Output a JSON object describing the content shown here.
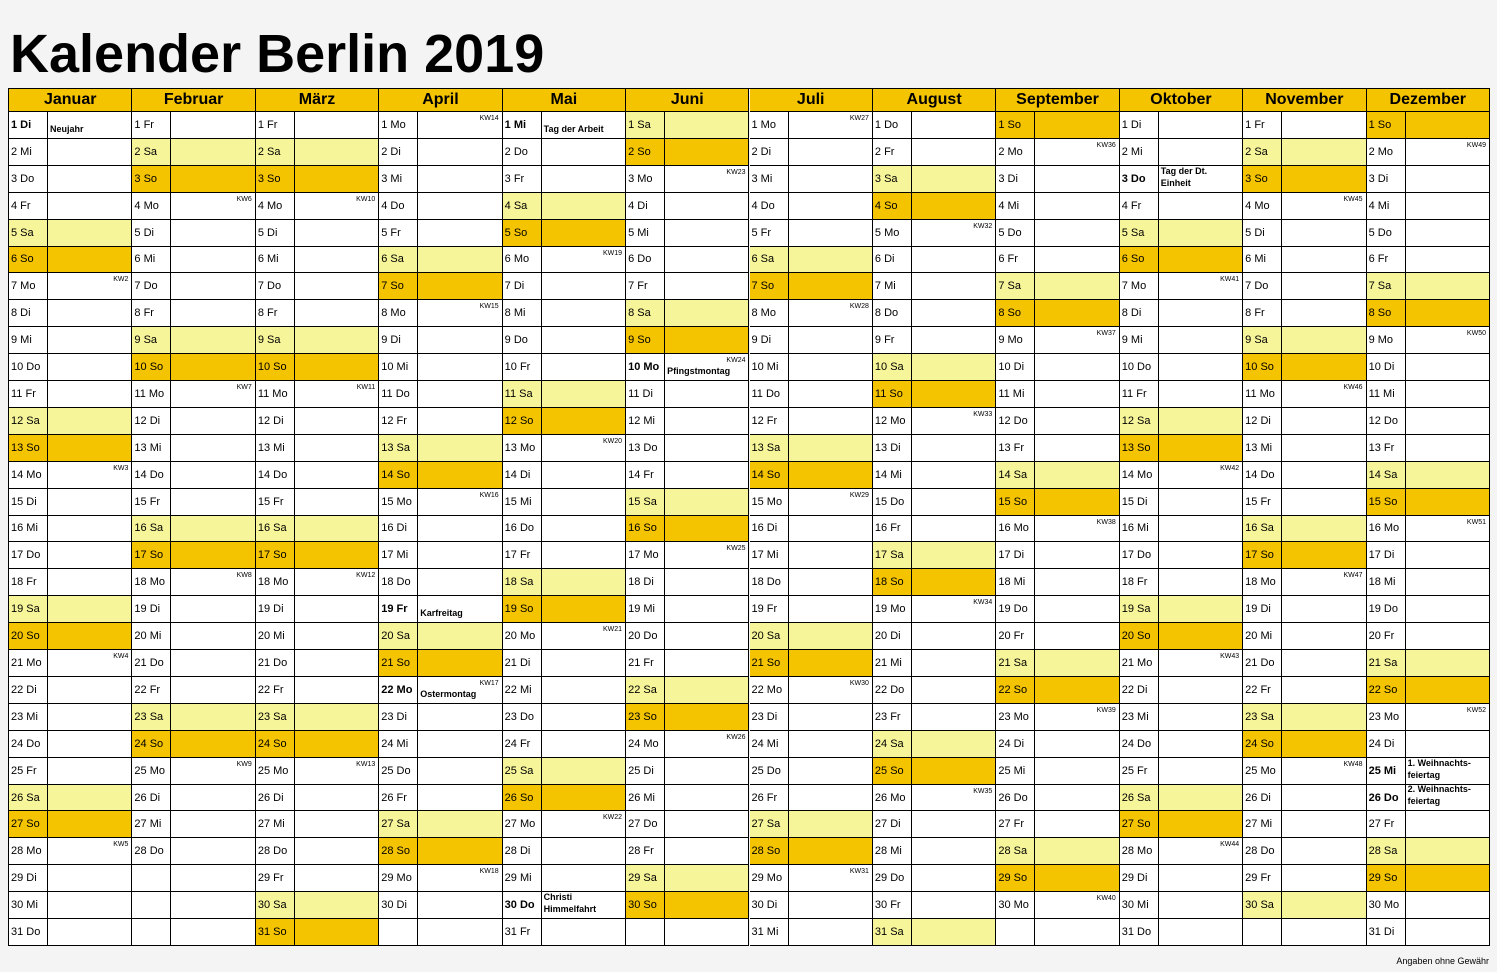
{
  "title": "Kalender Berlin 2019",
  "footer": "Angaben ohne Gewähr",
  "months": [
    {
      "name": "Januar",
      "days": [
        {
          "label": "1 Di",
          "note": "Neujahr"
        },
        "2 Mi",
        "3 Do",
        "4 Fr",
        "5 Sa",
        "6 So",
        {
          "label": "7 Mo",
          "kw": "KW2"
        },
        "8 Di",
        "9 Mi",
        "10 Do",
        "11 Fr",
        "12 Sa",
        "13 So",
        {
          "label": "14 Mo",
          "kw": "KW3"
        },
        "15 Di",
        "16 Mi",
        "17 Do",
        "18 Fr",
        "19 Sa",
        "20 So",
        {
          "label": "21 Mo",
          "kw": "KW4"
        },
        "22 Di",
        "23 Mi",
        "24 Do",
        "25 Fr",
        "26 Sa",
        "27 So",
        {
          "label": "28 Mo",
          "kw": "KW5"
        },
        "29 Di",
        "30 Mi",
        "31 Do"
      ]
    },
    {
      "name": "Februar",
      "days": [
        "1 Fr",
        "2 Sa",
        "3 So",
        {
          "label": "4 Mo",
          "kw": "KW6"
        },
        "5 Di",
        "6 Mi",
        "7 Do",
        "8 Fr",
        "9 Sa",
        "10 So",
        {
          "label": "11 Mo",
          "kw": "KW7"
        },
        "12 Di",
        "13 Mi",
        "14 Do",
        "15 Fr",
        "16 Sa",
        "17 So",
        {
          "label": "18 Mo",
          "kw": "KW8"
        },
        "19 Di",
        "20 Mi",
        "21 Do",
        "22 Fr",
        "23 Sa",
        "24 So",
        {
          "label": "25 Mo",
          "kw": "KW9"
        },
        "26 Di",
        "27 Mi",
        "28 Do"
      ]
    },
    {
      "name": "März",
      "days": [
        "1 Fr",
        "2 Sa",
        "3 So",
        {
          "label": "4 Mo",
          "kw": "KW10"
        },
        "5 Di",
        "6 Mi",
        "7 Do",
        "8 Fr",
        "9 Sa",
        "10 So",
        {
          "label": "11 Mo",
          "kw": "KW11"
        },
        "12 Di",
        "13 Mi",
        "14 Do",
        "15 Fr",
        "16 Sa",
        "17 So",
        {
          "label": "18 Mo",
          "kw": "KW12"
        },
        "19 Di",
        "20 Mi",
        "21 Do",
        "22 Fr",
        "23 Sa",
        "24 So",
        {
          "label": "25 Mo",
          "kw": "KW13"
        },
        "26 Di",
        "27 Mi",
        "28 Do",
        "29 Fr",
        "30 Sa",
        "31 So"
      ]
    },
    {
      "name": "April",
      "days": [
        {
          "label": "1 Mo",
          "kw": "KW14"
        },
        "2 Di",
        "3 Mi",
        "4 Do",
        "5 Fr",
        "6 Sa",
        "7 So",
        {
          "label": "8 Mo",
          "kw": "KW15"
        },
        "9 Di",
        "10 Mi",
        "11 Do",
        "12 Fr",
        "13 Sa",
        "14 So",
        {
          "label": "15 Mo",
          "kw": "KW16"
        },
        "16 Di",
        "17 Mi",
        "18 Do",
        {
          "label": "19 Fr",
          "note": "Karfreitag"
        },
        "20 Sa",
        "21 So",
        {
          "label": "22 Mo",
          "kw": "KW17",
          "note": "Ostermontag"
        },
        "23 Di",
        "24 Mi",
        "25 Do",
        "26 Fr",
        "27 Sa",
        "28 So",
        {
          "label": "29 Mo",
          "kw": "KW18"
        },
        "30 Di"
      ]
    },
    {
      "name": "Mai",
      "days": [
        {
          "label": "1 Mi",
          "note": "Tag der Arbeit"
        },
        "2 Do",
        "3 Fr",
        "4 Sa",
        "5 So",
        {
          "label": "6 Mo",
          "kw": "KW19"
        },
        "7 Di",
        "8 Mi",
        "9 Do",
        "10 Fr",
        "11 Sa",
        "12 So",
        {
          "label": "13 Mo",
          "kw": "KW20"
        },
        "14 Di",
        "15 Mi",
        "16 Do",
        "17 Fr",
        "18 Sa",
        "19 So",
        {
          "label": "20 Mo",
          "kw": "KW21"
        },
        "21 Di",
        "22 Mi",
        "23 Do",
        "24 Fr",
        "25 Sa",
        "26 So",
        {
          "label": "27 Mo",
          "kw": "KW22"
        },
        "28 Di",
        "29 Mi",
        {
          "label": "30 Do",
          "note": "Christi Himmelfahrt"
        },
        "31 Fr"
      ]
    },
    {
      "name": "Juni",
      "days": [
        "1 Sa",
        "2 So",
        {
          "label": "3 Mo",
          "kw": "KW23"
        },
        "4 Di",
        "5 Mi",
        "6 Do",
        "7 Fr",
        "8 Sa",
        "9 So",
        {
          "label": "10 Mo",
          "kw": "KW24",
          "note": "Pfingstmontag"
        },
        "11 Di",
        "12 Mi",
        "13 Do",
        "14 Fr",
        "15 Sa",
        "16 So",
        {
          "label": "17 Mo",
          "kw": "KW25"
        },
        "18 Di",
        "19 Mi",
        "20 Do",
        "21 Fr",
        "22 Sa",
        "23 So",
        {
          "label": "24 Mo",
          "kw": "KW26"
        },
        "25 Di",
        "26 Mi",
        "27 Do",
        "28 Fr",
        "29 Sa",
        "30 So"
      ]
    },
    {
      "name": "Juli",
      "days": [
        {
          "label": "1 Mo",
          "kw": "KW27"
        },
        "2 Di",
        "3 Mi",
        "4 Do",
        "5 Fr",
        "6 Sa",
        "7 So",
        {
          "label": "8 Mo",
          "kw": "KW28"
        },
        "9 Di",
        "10 Mi",
        "11 Do",
        "12 Fr",
        "13 Sa",
        "14 So",
        {
          "label": "15 Mo",
          "kw": "KW29"
        },
        "16 Di",
        "17 Mi",
        "18 Do",
        "19 Fr",
        "20 Sa",
        "21 So",
        {
          "label": "22 Mo",
          "kw": "KW30"
        },
        "23 Di",
        "24 Mi",
        "25 Do",
        "26 Fr",
        "27 Sa",
        "28 So",
        {
          "label": "29 Mo",
          "kw": "KW31"
        },
        "30 Di",
        "31 Mi"
      ]
    },
    {
      "name": "August",
      "days": [
        "1 Do",
        "2 Fr",
        "3 Sa",
        "4 So",
        {
          "label": "5 Mo",
          "kw": "KW32"
        },
        "6 Di",
        "7 Mi",
        "8 Do",
        "9 Fr",
        "10 Sa",
        "11 So",
        {
          "label": "12 Mo",
          "kw": "KW33"
        },
        "13 Di",
        "14 Mi",
        "15 Do",
        "16 Fr",
        "17 Sa",
        "18 So",
        {
          "label": "19 Mo",
          "kw": "KW34"
        },
        "20 Di",
        "21 Mi",
        "22 Do",
        "23 Fr",
        "24 Sa",
        "25 So",
        {
          "label": "26 Mo",
          "kw": "KW35"
        },
        "27 Di",
        "28 Mi",
        "29 Do",
        "30 Fr",
        "31 Sa"
      ]
    },
    {
      "name": "September",
      "days": [
        "1 So",
        {
          "label": "2 Mo",
          "kw": "KW36"
        },
        "3 Di",
        "4 Mi",
        "5 Do",
        "6 Fr",
        "7 Sa",
        "8 So",
        {
          "label": "9 Mo",
          "kw": "KW37"
        },
        "10 Di",
        "11 Mi",
        "12 Do",
        "13 Fr",
        "14 Sa",
        "15 So",
        {
          "label": "16 Mo",
          "kw": "KW38"
        },
        "17 Di",
        "18 Mi",
        "19 Do",
        "20 Fr",
        "21 Sa",
        "22 So",
        {
          "label": "23 Mo",
          "kw": "KW39"
        },
        "24 Di",
        "25 Mi",
        "26 Do",
        "27 Fr",
        "28 Sa",
        "29 So",
        {
          "label": "30 Mo",
          "kw": "KW40"
        }
      ]
    },
    {
      "name": "Oktober",
      "days": [
        "1 Di",
        "2 Mi",
        {
          "label": "3 Do",
          "note": "Tag der Dt. Einheit"
        },
        "4 Fr",
        "5 Sa",
        "6 So",
        {
          "label": "7 Mo",
          "kw": "KW41"
        },
        "8 Di",
        "9 Mi",
        "10 Do",
        "11 Fr",
        "12 Sa",
        "13 So",
        {
          "label": "14 Mo",
          "kw": "KW42"
        },
        "15 Di",
        "16 Mi",
        "17 Do",
        "18 Fr",
        "19 Sa",
        "20 So",
        {
          "label": "21 Mo",
          "kw": "KW43"
        },
        "22 Di",
        "23 Mi",
        "24 Do",
        "25 Fr",
        "26 Sa",
        "27 So",
        {
          "label": "28 Mo",
          "kw": "KW44"
        },
        "29 Di",
        "30 Mi",
        "31 Do"
      ]
    },
    {
      "name": "November",
      "days": [
        "1 Fr",
        "2 Sa",
        "3 So",
        {
          "label": "4 Mo",
          "kw": "KW45"
        },
        "5 Di",
        "6 Mi",
        "7 Do",
        "8 Fr",
        "9 Sa",
        "10 So",
        {
          "label": "11 Mo",
          "kw": "KW46"
        },
        "12 Di",
        "13 Mi",
        "14 Do",
        "15 Fr",
        "16 Sa",
        "17 So",
        {
          "label": "18 Mo",
          "kw": "KW47"
        },
        "19 Di",
        "20 Mi",
        "21 Do",
        "22 Fr",
        "23 Sa",
        "24 So",
        {
          "label": "25 Mo",
          "kw": "KW48"
        },
        "26 Di",
        "27 Mi",
        "28 Do",
        "29 Fr",
        "30 Sa"
      ]
    },
    {
      "name": "Dezember",
      "days": [
        "1 So",
        {
          "label": "2 Mo",
          "kw": "KW49"
        },
        "3 Di",
        "4 Mi",
        "5 Do",
        "6 Fr",
        "7 Sa",
        "8 So",
        {
          "label": "9 Mo",
          "kw": "KW50"
        },
        "10 Di",
        "11 Mi",
        "12 Do",
        "13 Fr",
        "14 Sa",
        "15 So",
        {
          "label": "16 Mo",
          "kw": "KW51"
        },
        "17 Di",
        "18 Mi",
        "19 Do",
        "20 Fr",
        "21 Sa",
        "22 So",
        {
          "label": "23 Mo",
          "kw": "KW52"
        },
        "24 Di",
        {
          "label": "25 Mi",
          "note": "1. Weihnachts-feiertag"
        },
        {
          "label": "26 Do",
          "note": "2. Weihnachts-feiertag"
        },
        "27 Fr",
        "28 Sa",
        "29 So",
        "30 Mo",
        "31 Di"
      ]
    }
  ]
}
